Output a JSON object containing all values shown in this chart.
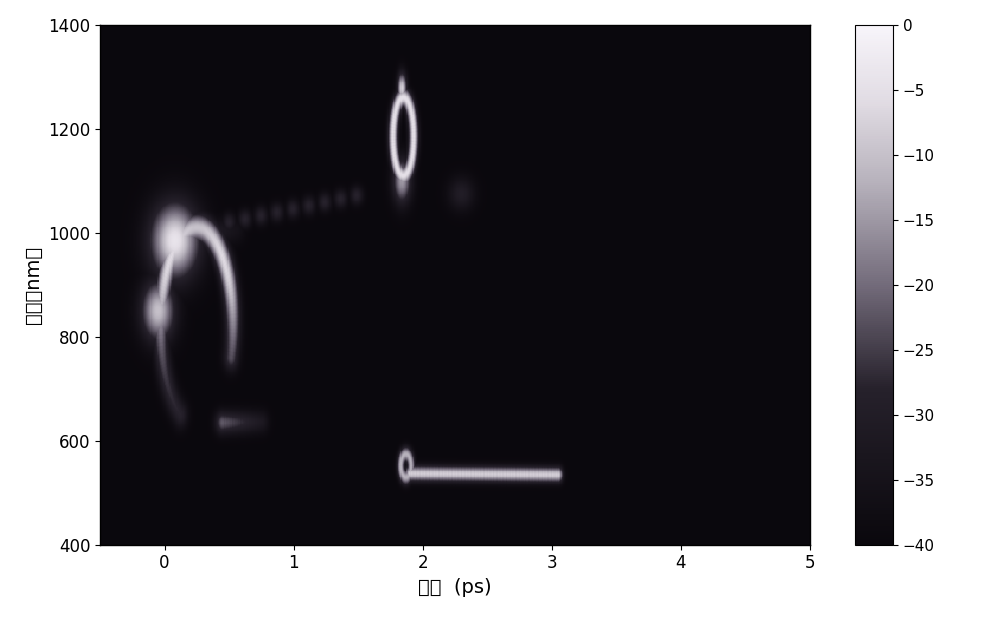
{
  "title": "",
  "xlabel": "时间  (ps)",
  "ylabel": "波长（nm）",
  "xlim": [
    -0.5,
    5.0
  ],
  "ylim": [
    400,
    1400
  ],
  "xticks": [
    0,
    1,
    2,
    3,
    4,
    5
  ],
  "yticks": [
    400,
    600,
    800,
    1000,
    1200,
    1400
  ],
  "colorbar_min": -40,
  "colorbar_max": 0,
  "colorbar_ticks": [
    0,
    -5,
    -10,
    -15,
    -20,
    -25,
    -30,
    -35,
    -40
  ],
  "background_color": "#000000",
  "figure_facecolor": "#ffffff",
  "figsize": [
    10.0,
    6.19
  ],
  "dpi": 100
}
